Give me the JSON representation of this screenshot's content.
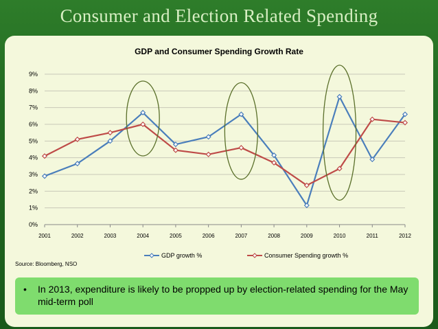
{
  "slide": {
    "title": "Consumer and Election Related Spending",
    "source": "Source: Bloomberg, NSO",
    "bullet": "In 2013, expenditure is likely to be propped up by election-related spending for the May mid-term poll"
  },
  "colors": {
    "gdp_series": "#4a7ebb",
    "consumer_series": "#be4b48",
    "ellipse": "#5a6f2a",
    "plot_bg": "#f4f8dc"
  },
  "chart_data": {
    "type": "line",
    "title": "GDP and Consumer Spending Growth Rate",
    "categories": [
      "2001",
      "2002",
      "2003",
      "2004",
      "2005",
      "2006",
      "2007",
      "2008",
      "2009",
      "2010",
      "2011",
      "2012"
    ],
    "series": [
      {
        "name": "GDP growth %",
        "values": [
          2.9,
          3.65,
          5.0,
          6.7,
          4.8,
          5.25,
          6.6,
          4.15,
          1.15,
          7.65,
          3.9,
          6.6
        ]
      },
      {
        "name": "Consumer Spending growth %",
        "values": [
          4.1,
          5.1,
          5.5,
          6.0,
          4.45,
          4.2,
          4.6,
          3.7,
          2.35,
          3.35,
          6.3,
          6.1
        ]
      }
    ],
    "ylim": [
      0,
      9
    ],
    "yticks": [
      "0%",
      "1%",
      "2%",
      "3%",
      "4%",
      "5%",
      "6%",
      "7%",
      "8%",
      "9%"
    ],
    "grid": true,
    "legend": "bottom",
    "annotations": [
      {
        "shape": "ellipse",
        "around": "2004"
      },
      {
        "shape": "ellipse",
        "around": "2007"
      },
      {
        "shape": "ellipse",
        "around": "2010"
      }
    ]
  }
}
